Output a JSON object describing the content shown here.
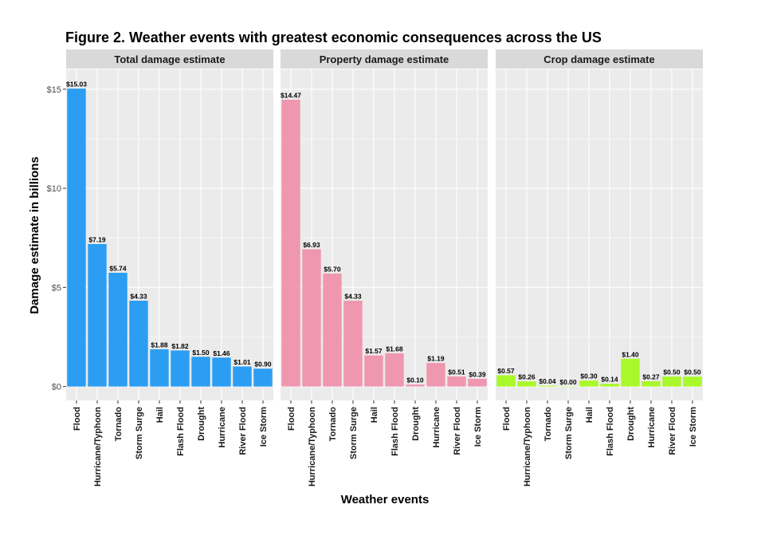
{
  "chart_data": {
    "type": "bar",
    "title": "Figure 2. Weather events with greatest economic consequences across the US",
    "xlabel": "Weather events",
    "ylabel": "Damage estimate in billions",
    "ylim": [
      -0.7,
      16.0
    ],
    "yticks": [
      0,
      5,
      10,
      15
    ],
    "ytick_labels": [
      "$0",
      "$5",
      "$10",
      "$15"
    ],
    "grid": true,
    "categories": [
      "Flood",
      "Hurricane/Typhoon",
      "Tornado",
      "Storm Surge",
      "Hail",
      "Flash Flood",
      "Drought",
      "Hurricane",
      "River Flood",
      "Ice Storm"
    ],
    "panels": [
      {
        "title": "Total damage estimate",
        "color": "#2b9ef3",
        "values": [
          15.03,
          7.19,
          5.74,
          4.33,
          1.88,
          1.82,
          1.5,
          1.46,
          1.01,
          0.9
        ],
        "labels": [
          "$15.03",
          "$7.19",
          "$5.74",
          "$4.33",
          "$1.88",
          "$1.82",
          "$1.50",
          "$1.46",
          "$1.01",
          "$0.90"
        ]
      },
      {
        "title": "Property damage estimate",
        "color": "#f097b0",
        "values": [
          14.47,
          6.93,
          5.7,
          4.33,
          1.57,
          1.68,
          0.1,
          1.19,
          0.51,
          0.39
        ],
        "labels": [
          "$14.47",
          "$6.93",
          "$5.70",
          "$4.33",
          "$1.57",
          "$1.68",
          "$0.10",
          "$1.19",
          "$0.51",
          "$0.39"
        ]
      },
      {
        "title": "Crop damage estimate",
        "color": "#a9f82a",
        "values": [
          0.57,
          0.26,
          0.04,
          0.0,
          0.3,
          0.14,
          1.4,
          0.27,
          0.5,
          0.5
        ],
        "labels": [
          "$0.57",
          "$0.26",
          "$0.04",
          "$0.00",
          "$0.30",
          "$0.14",
          "$1.40",
          "$0.27",
          "$0.50",
          "$0.50"
        ]
      }
    ]
  }
}
